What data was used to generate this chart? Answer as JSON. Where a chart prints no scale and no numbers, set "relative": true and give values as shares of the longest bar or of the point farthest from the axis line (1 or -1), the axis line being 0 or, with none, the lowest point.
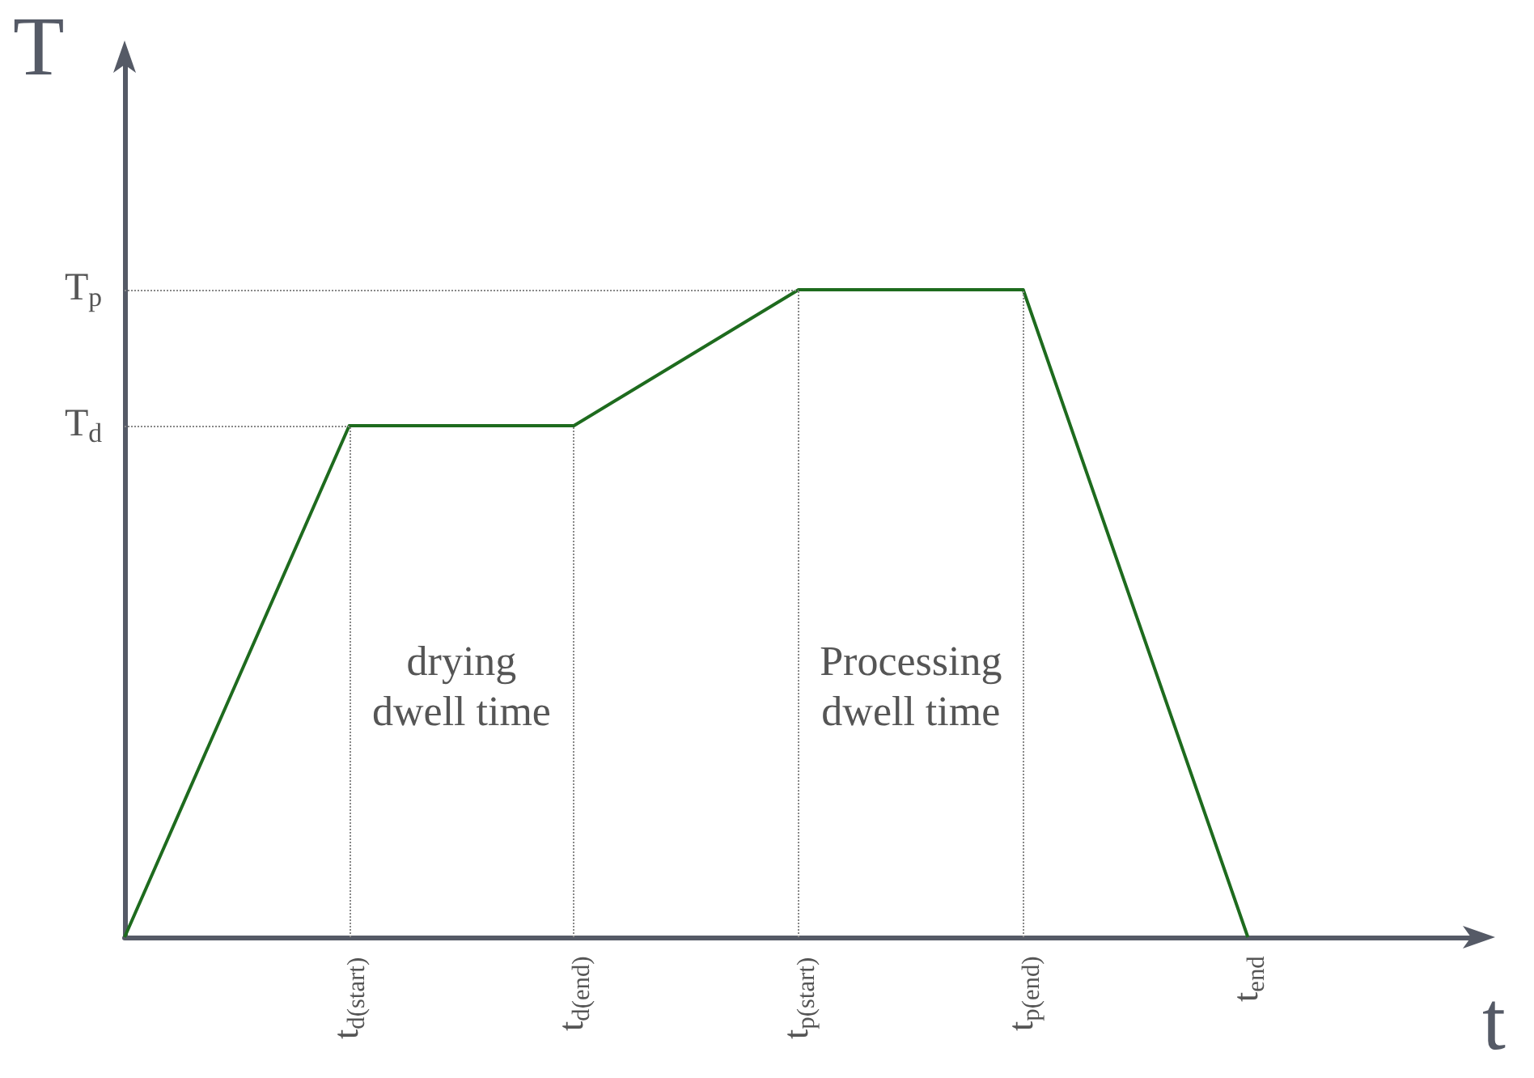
{
  "chart_data": {
    "type": "line",
    "relative": true,
    "xlabel": "t",
    "ylabel": "T",
    "categories": [
      null,
      "t$_{d(start)}$",
      "t$_{d(end)}$",
      "t$_{p(start)}$",
      "t$_{p(end)}$",
      "t$_{end}$",
      null
    ],
    "series": [
      {
        "color": "#1e6b1e",
        "values": [
          0,
          0.79,
          0.79,
          1,
          1,
          0,
          null
        ]
      }
    ],
    "ref_lines": [
      {
        "axis": "y",
        "value": 1,
        "label": "T$_{p}$",
        "line_style": "dotted",
        "color": "#888888"
      },
      {
        "axis": "y",
        "value": 0.79,
        "label": "T$_{d}$",
        "line_style": "dotted",
        "color": "#888888"
      },
      {
        "axis": "x",
        "value": "t$_{d(start)}$",
        "line_style": "dotted",
        "color": "#888888"
      },
      {
        "axis": "x",
        "value": "t$_{d(end)}$",
        "line_style": "dotted",
        "color": "#888888"
      },
      {
        "axis": "x",
        "value": "t$_{p(start)}$",
        "line_style": "dotted",
        "color": "#888888"
      },
      {
        "axis": "x",
        "value": "t$_{p(end)}$",
        "line_style": "dotted",
        "color": "#888888"
      }
    ],
    "annotations": [
      "drying dwell time",
      "Processing dwell time"
    ],
    "grid": false,
    "marker": "none",
    "line_style": "solid"
  }
}
